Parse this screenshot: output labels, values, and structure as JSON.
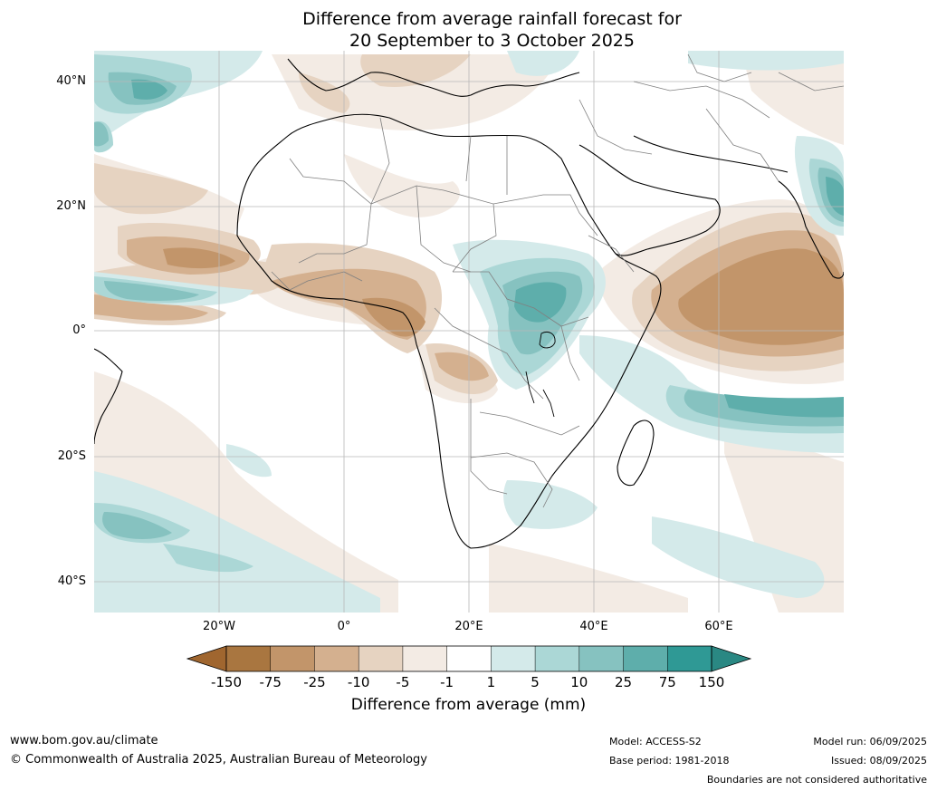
{
  "title": {
    "line1": "Difference from average rainfall forecast for",
    "line2": "20 September to 3 October 2025"
  },
  "axes": {
    "lat_labels": [
      "40°N",
      "20°N",
      "0°",
      "20°S",
      "40°S"
    ],
    "lon_labels": [
      "20°W",
      "0°",
      "20°E",
      "40°E",
      "60°E"
    ]
  },
  "colorbar": {
    "ticks": [
      "-150",
      "-75",
      "-25",
      "-10",
      "-5",
      "-1",
      "1",
      "5",
      "10",
      "25",
      "75",
      "150"
    ],
    "colors": [
      "#a97640",
      "#c2956a",
      "#d4b08f",
      "#e6d3c1",
      "#f3ebe4",
      "#ffffff",
      "#d4eaea",
      "#abd7d6",
      "#86c2c0",
      "#5eaeab",
      "#2f9995"
    ],
    "under_color": "#a0662f",
    "over_color": "#2a8883",
    "label": "Difference from average (mm)"
  },
  "footer": {
    "website": "www.bom.gov.au/climate",
    "copyright": "© Commonwealth of Australia 2025, Australian Bureau of Meteorology",
    "model": "Model: ACCESS-S2",
    "base_period": "Base period: 1981-2018",
    "model_run": "Model run: 06/09/2025",
    "issued": "Issued: 08/09/2025",
    "boundaries": "Boundaries are not considered authoritative"
  }
}
